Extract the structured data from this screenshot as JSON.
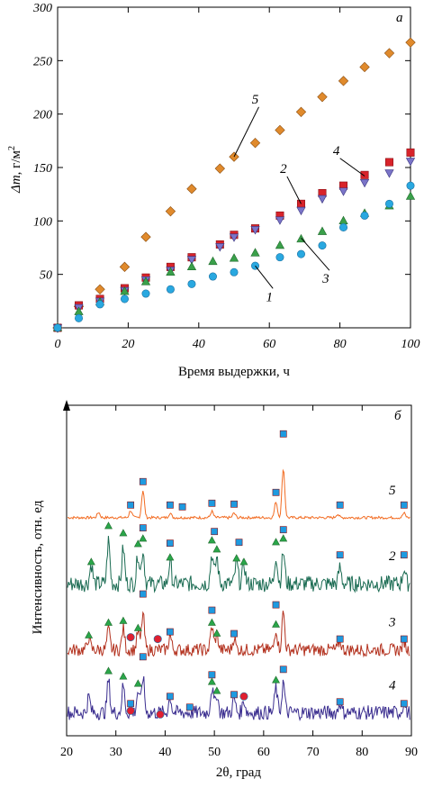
{
  "chart_data": [
    {
      "type": "scatter",
      "panel_label": "a",
      "xlabel": "Время выдержки, ч",
      "ylabel_main": "Δm",
      "ylabel_unit": ", г/м",
      "ylabel_sup": "2",
      "xlim": [
        0,
        100
      ],
      "ylim": [
        0,
        300
      ],
      "xticks": [
        0,
        20,
        40,
        60,
        80,
        100
      ],
      "yticks": [
        50,
        100,
        150,
        200,
        250,
        300
      ],
      "grid": false,
      "series": [
        {
          "label": "5",
          "marker": "diamond",
          "color": "#e08a2c",
          "x": [
            0,
            6,
            12,
            19,
            25,
            32,
            38,
            46,
            50,
            56,
            63,
            69,
            75,
            81,
            87,
            94,
            100
          ],
          "y": [
            0,
            20,
            36,
            57,
            85,
            109,
            130,
            149,
            160,
            173,
            185,
            202,
            216,
            231,
            244,
            257,
            267
          ]
        },
        {
          "label": "2",
          "marker": "square",
          "color": "#d8232a",
          "x": [
            0,
            6,
            12,
            19,
            25,
            32,
            38,
            46,
            50,
            56,
            63,
            69,
            75,
            81,
            87,
            94,
            100
          ],
          "y": [
            0,
            21,
            27,
            37,
            47,
            57,
            66,
            78,
            87,
            93,
            105,
            116,
            126,
            133,
            143,
            155,
            164
          ]
        },
        {
          "label": "4",
          "marker": "triangle-down",
          "color": "#7a74c8",
          "x": [
            0,
            6,
            12,
            19,
            25,
            32,
            38,
            46,
            50,
            56,
            63,
            69,
            75,
            81,
            87,
            94,
            100
          ],
          "y": [
            0,
            19,
            25,
            35,
            45,
            54,
            64,
            76,
            85,
            92,
            101,
            110,
            121,
            128,
            136,
            145,
            156
          ]
        },
        {
          "label": "3",
          "marker": "triangle",
          "color": "#3aa04a",
          "x": [
            0,
            6,
            12,
            19,
            25,
            32,
            38,
            44,
            50,
            56,
            63,
            69,
            75,
            81,
            87,
            94,
            100
          ],
          "y": [
            0,
            15,
            24,
            34,
            43,
            52,
            57,
            62,
            65,
            70,
            77,
            83,
            90,
            100,
            107,
            114,
            123
          ]
        },
        {
          "label": "1",
          "marker": "circle",
          "color": "#29a8e0",
          "x": [
            0,
            6,
            12,
            19,
            25,
            32,
            38,
            44,
            50,
            56,
            63,
            69,
            75,
            81,
            87,
            94,
            100
          ],
          "y": [
            0,
            9,
            22,
            27,
            32,
            36,
            41,
            48,
            52,
            58,
            66,
            69,
            77,
            94,
            105,
            116,
            133
          ]
        }
      ],
      "annotations": [
        {
          "text": "5",
          "x": 56,
          "y": 210
        },
        {
          "text": "2",
          "x": 64,
          "y": 145
        },
        {
          "text": "4",
          "x": 79,
          "y": 162
        },
        {
          "text": "3",
          "x": 76,
          "y": 42
        },
        {
          "text": "1",
          "x": 60,
          "y": 25
        }
      ]
    },
    {
      "type": "line",
      "panel_label": "б",
      "xlabel": "2θ, град",
      "ylabel": "Интенсивность, отн. ед",
      "xlim": [
        20,
        90
      ],
      "xticks": [
        20,
        30,
        40,
        50,
        60,
        70,
        80,
        90
      ],
      "series": [
        {
          "label": "5",
          "color": "#f26b21",
          "baseline_frac": 0.34,
          "noise": 1.5,
          "peaks": [
            [
              26.5,
              6
            ],
            [
              33.0,
              8
            ],
            [
              35.5,
              30
            ],
            [
              41.0,
              5
            ],
            [
              49.5,
              7
            ],
            [
              54.0,
              5
            ],
            [
              62.5,
              18
            ],
            [
              64.0,
              55
            ],
            [
              75.0,
              4
            ],
            [
              88.5,
              5
            ]
          ]
        },
        {
          "label": "2",
          "color": "#1a6b52",
          "baseline_frac": 0.54,
          "noise": 9,
          "peaks": [
            [
              25.0,
              22
            ],
            [
              28.5,
              48
            ],
            [
              31.5,
              40
            ],
            [
              34.5,
              34
            ],
            [
              35.5,
              38
            ],
            [
              41.0,
              25
            ],
            [
              49.5,
              34
            ],
            [
              50.5,
              30
            ],
            [
              54.5,
              24
            ],
            [
              56.0,
              22
            ],
            [
              62.5,
              32
            ],
            [
              64.0,
              36
            ],
            [
              75.5,
              18
            ],
            [
              88.5,
              18
            ]
          ]
        },
        {
          "label": "3",
          "color": "#b3311e",
          "baseline_frac": 0.74,
          "noise": 7,
          "peaks": [
            [
              24.5,
              14
            ],
            [
              28.5,
              22
            ],
            [
              31.5,
              24
            ],
            [
              34.5,
              20
            ],
            [
              35.5,
              40
            ],
            [
              41.0,
              16
            ],
            [
              49.5,
              26
            ],
            [
              50.5,
              18
            ],
            [
              54.0,
              14
            ],
            [
              62.5,
              24
            ],
            [
              64.0,
              42
            ],
            [
              75.5,
              10
            ],
            [
              88.5,
              10
            ]
          ]
        },
        {
          "label": "4",
          "color": "#3a2d8f",
          "baseline_frac": 0.93,
          "noise": 8,
          "peaks": [
            [
              24.5,
              18
            ],
            [
              28.5,
              36
            ],
            [
              31.5,
              30
            ],
            [
              34.5,
              24
            ],
            [
              35.5,
              40
            ],
            [
              41.0,
              18
            ],
            [
              49.5,
              28
            ],
            [
              50.5,
              22
            ],
            [
              54.0,
              16
            ],
            [
              56.0,
              14
            ],
            [
              62.5,
              28
            ],
            [
              64.0,
              34
            ],
            [
              75.5,
              12
            ],
            [
              88.5,
              12
            ]
          ]
        }
      ],
      "markers": [
        {
          "shape": "square",
          "color": "#1e9ae0",
          "series": "5",
          "x": [
            33.0,
            35.5,
            41.0,
            43.5,
            49.5,
            54.0,
            62.5,
            64.0,
            75.5,
            88.5
          ],
          "dy": [
            6,
            0,
            6,
            8,
            4,
            5,
            0,
            -28,
            6,
            6
          ]
        },
        {
          "shape": "triangle",
          "color": "#2aa64a",
          "series": "2",
          "x": [
            25.0,
            28.5,
            31.5,
            34.5,
            35.5,
            41.0,
            49.5,
            50.5,
            54.5,
            56.0,
            62.5,
            64.0
          ],
          "dy": [
            8,
            -6,
            -6,
            0,
            -2,
            6,
            -4,
            2,
            6,
            8,
            -4,
            -4
          ]
        },
        {
          "shape": "square",
          "color": "#1e9ae0",
          "series": "2",
          "x": [
            35.5,
            41.0,
            50.0,
            55.0,
            64.0,
            75.5,
            88.5
          ],
          "dy": [
            -14,
            -10,
            -14,
            -12,
            -14,
            -4,
            -4
          ]
        },
        {
          "shape": "triangle",
          "color": "#2aa64a",
          "series": "3",
          "x": [
            24.5,
            28.5,
            31.5,
            34.5,
            49.5,
            50.5,
            62.5
          ],
          "dy": [
            8,
            2,
            2,
            6,
            6,
            10,
            6
          ]
        },
        {
          "shape": "square",
          "color": "#1e9ae0",
          "series": "3",
          "x": [
            35.5,
            41.0,
            49.5,
            54.0,
            62.5,
            75.5,
            88.5
          ],
          "dy": [
            -12,
            6,
            -8,
            6,
            -16,
            8,
            8
          ]
        },
        {
          "shape": "circle",
          "color": "#e02030",
          "series": "3",
          "x": [
            33.0,
            38.5
          ],
          "dy": [
            6,
            8
          ]
        },
        {
          "shape": "triangle",
          "color": "#2aa64a",
          "series": "4",
          "x": [
            28.5,
            31.5,
            34.5,
            49.5,
            50.5,
            62.5
          ],
          "dy": [
            0,
            0,
            2,
            4,
            8,
            2
          ]
        },
        {
          "shape": "square",
          "color": "#1e9ae0",
          "series": "4",
          "x": [
            33.0,
            35.5,
            41.0,
            45.0,
            49.5,
            54.0,
            64.0,
            75.5,
            88.5
          ],
          "dy": [
            10,
            -12,
            10,
            14,
            -4,
            6,
            -4,
            10,
            12
          ]
        },
        {
          "shape": "circle",
          "color": "#e02030",
          "series": "4",
          "x": [
            33.0,
            39.0,
            56.0
          ],
          "dy": [
            18,
            22,
            6
          ]
        }
      ]
    }
  ]
}
